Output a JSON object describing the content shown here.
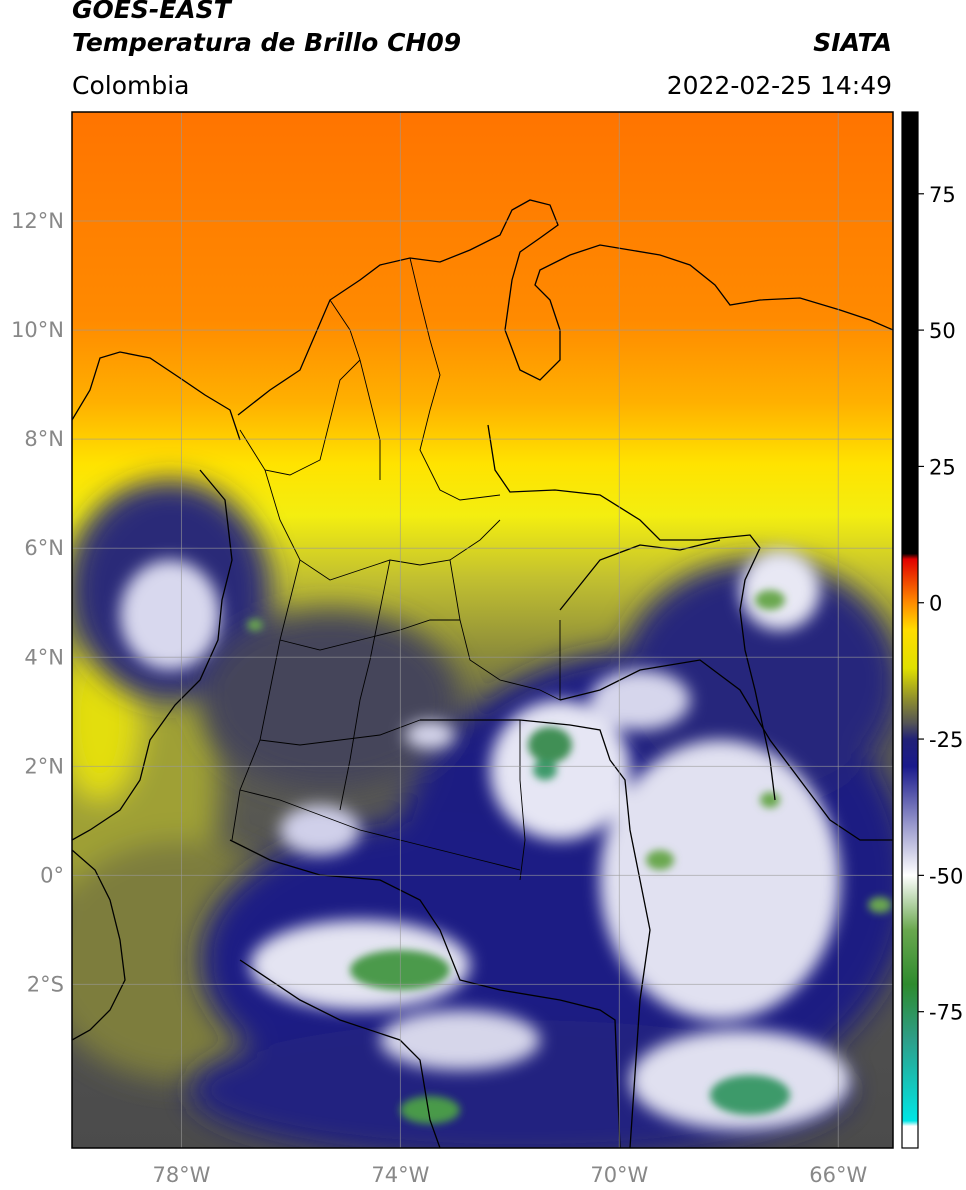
{
  "header": {
    "satellite": "GOES-EAST",
    "product": "Temperatura de Brillo CH09",
    "organization": "SIATA",
    "region": "Colombia",
    "datetime": "2022-02-25 14:49"
  },
  "map": {
    "lon_range": [
      -80,
      -65
    ],
    "lat_range": [
      -5,
      14
    ],
    "lat_ticks": [
      {
        "value": 12,
        "label": "12°N"
      },
      {
        "value": 10,
        "label": "10°N"
      },
      {
        "value": 8,
        "label": "8°N"
      },
      {
        "value": 6,
        "label": "6°N"
      },
      {
        "value": 4,
        "label": "4°N"
      },
      {
        "value": 2,
        "label": "2°N"
      },
      {
        "value": 0,
        "label": "0°"
      },
      {
        "value": -2,
        "label": "2°S"
      }
    ],
    "lon_ticks": [
      {
        "value": -78,
        "label": "78°W"
      },
      {
        "value": -74,
        "label": "74°W"
      },
      {
        "value": -70,
        "label": "70°W"
      },
      {
        "value": -66,
        "label": "66°W"
      }
    ],
    "gridlines": true,
    "gridline_color": "#9a9a9a"
  },
  "colorbar": {
    "range": [
      -100,
      90
    ],
    "ticks": [
      {
        "value": 75,
        "label": "75"
      },
      {
        "value": 50,
        "label": "50"
      },
      {
        "value": 25,
        "label": "25"
      },
      {
        "value": 0,
        "label": "0"
      },
      {
        "value": -25,
        "label": "-25"
      },
      {
        "value": -50,
        "label": "-50"
      },
      {
        "value": -75,
        "label": "-75"
      }
    ],
    "stops": [
      {
        "value": -100,
        "color": "#ffffff"
      },
      {
        "value": -96,
        "color": "#ffffff"
      },
      {
        "value": -95,
        "color": "#00e5e5"
      },
      {
        "value": -80,
        "color": "#2e9e88"
      },
      {
        "value": -70,
        "color": "#2e8b2e"
      },
      {
        "value": -60,
        "color": "#6aa84f"
      },
      {
        "value": -50,
        "color": "#ffffff"
      },
      {
        "value": -40,
        "color": "#9090c8"
      },
      {
        "value": -30,
        "color": "#1a1a8c"
      },
      {
        "value": -25,
        "color": "#222277"
      },
      {
        "value": -22,
        "color": "#555555"
      },
      {
        "value": -18,
        "color": "#8a8a30"
      },
      {
        "value": -12,
        "color": "#e0e000"
      },
      {
        "value": -5,
        "color": "#ffdd00"
      },
      {
        "value": 0,
        "color": "#ff8c00"
      },
      {
        "value": 8,
        "color": "#e00000"
      },
      {
        "value": 9,
        "color": "#000000"
      },
      {
        "value": 90,
        "color": "#000000"
      }
    ]
  },
  "palette": {
    "orange": "#ff7f00",
    "yellow": "#ffe600",
    "olive": "#a2a332",
    "dark_gray": "#5b5b55",
    "navy": "#1c1c84",
    "white_cloud": "#e8e8f4",
    "green": "#4f9a4f",
    "border": "#000000"
  }
}
